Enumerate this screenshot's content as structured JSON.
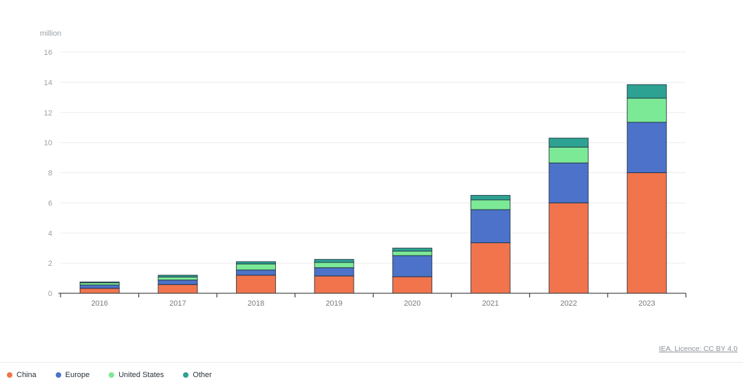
{
  "chart_data": {
    "type": "bar",
    "stacked": true,
    "title": "",
    "unit_label": "million",
    "xlabel": "",
    "ylabel": "million",
    "categories": [
      "2016",
      "2017",
      "2018",
      "2019",
      "2020",
      "2021",
      "2022",
      "2023"
    ],
    "series": [
      {
        "name": "China",
        "color": "#F1744D",
        "values": [
          0.33,
          0.58,
          1.2,
          1.15,
          1.1,
          3.35,
          6.0,
          8.0
        ]
      },
      {
        "name": "Europe",
        "color": "#4C73C9",
        "values": [
          0.22,
          0.3,
          0.35,
          0.55,
          1.4,
          2.2,
          2.65,
          3.35
        ]
      },
      {
        "name": "United States",
        "color": "#7CE996",
        "values": [
          0.15,
          0.2,
          0.4,
          0.35,
          0.3,
          0.65,
          1.05,
          1.6
        ]
      },
      {
        "name": "Other",
        "color": "#2EA292",
        "values": [
          0.05,
          0.12,
          0.15,
          0.2,
          0.2,
          0.3,
          0.6,
          0.9
        ]
      }
    ],
    "totals": [
      0.75,
      1.2,
      2.1,
      2.25,
      3.0,
      6.5,
      10.3,
      13.85
    ],
    "ylim": [
      0,
      16
    ],
    "yticks": [
      0,
      2,
      4,
      6,
      8,
      10,
      12,
      14,
      16
    ],
    "grid": true,
    "legend_position": "bottom-left",
    "colors": {
      "grid": "#ececec",
      "axis": "#4a4a4a",
      "bar_stroke": "#1f2d3d",
      "tick_text": "#9aa0a6",
      "category_text": "#76797d"
    }
  },
  "attribution": {
    "label": "IEA. Licence: CC BY 4.0"
  }
}
